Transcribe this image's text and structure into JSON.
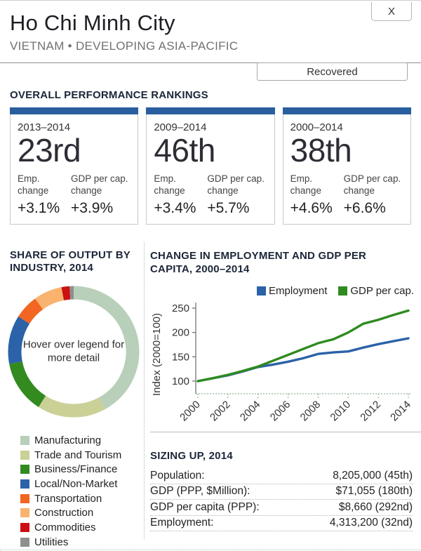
{
  "header": {
    "title": "Ho Chi Minh City",
    "subtitle": "VIETNAM • DEVELOPING ASIA-PACIFIC",
    "close_label": "X",
    "status_button_label": "Recovered"
  },
  "rankings": {
    "heading": "OVERALL PERFORMANCE RANKINGS",
    "accent_color": "#2a5f9f",
    "cards": [
      {
        "period": "2013–2014",
        "rank": "23rd",
        "emp_label": "Emp. change",
        "gdp_label": "GDP per cap. change",
        "emp_change": "+3.1%",
        "gdp_change": "+3.9%"
      },
      {
        "period": "2009–2014",
        "rank": "46th",
        "emp_label": "Emp. change",
        "gdp_label": "GDP per cap. change",
        "emp_change": "+3.4%",
        "gdp_change": "+5.7%"
      },
      {
        "period": "2000–2014",
        "rank": "38th",
        "emp_label": "Emp. change",
        "gdp_label": "GDP per cap. change",
        "emp_change": "+4.6%",
        "gdp_change": "+6.6%"
      }
    ]
  },
  "chart_data": [
    {
      "type": "pie",
      "style": "donut",
      "title": "SHARE OF OUTPUT BY INDUSTRY, 2014",
      "center_note": "Hover over legend for more detail",
      "units": "percent share of output",
      "legend_position": "below",
      "segments": [
        {
          "label": "Manufacturing",
          "value": 42,
          "color": "#b8cfba"
        },
        {
          "label": "Trade and Tourism",
          "value": 17,
          "color": "#cbd097"
        },
        {
          "label": "Business/Finance",
          "value": 13,
          "color": "#338a1f"
        },
        {
          "label": "Local/Non-Market",
          "value": 12,
          "color": "#2b62a8"
        },
        {
          "label": "Transportation",
          "value": 6,
          "color": "#f26522"
        },
        {
          "label": "Construction",
          "value": 7,
          "color": "#f9b36e"
        },
        {
          "label": "Commodities",
          "value": 2,
          "color": "#cc1012"
        },
        {
          "label": "Utilities",
          "value": 1,
          "color": "#8f8f8f"
        }
      ]
    },
    {
      "type": "line",
      "title": "CHANGE IN EMPLOYMENT AND GDP PER CAPITA, 2000–2014",
      "ylabel": "Index (2000=100)",
      "x": [
        2000,
        2001,
        2002,
        2003,
        2004,
        2005,
        2006,
        2007,
        2008,
        2009,
        2010,
        2011,
        2012,
        2013,
        2014
      ],
      "xticks": [
        2000,
        2002,
        2004,
        2006,
        2008,
        2010,
        2012,
        2014
      ],
      "yticks": [
        100,
        150,
        200,
        250
      ],
      "ylim": [
        85,
        258
      ],
      "legend_position": "top-right",
      "grid": false,
      "series": [
        {
          "name": "Employment",
          "color": "#2b62a8",
          "values": [
            100,
            106,
            112,
            120,
            129,
            134,
            140,
            147,
            156,
            159,
            161,
            169,
            176,
            182,
            188
          ]
        },
        {
          "name": "GDP per cap.",
          "color": "#2e8b1e",
          "values": [
            100,
            106,
            113,
            121,
            130,
            142,
            154,
            166,
            178,
            186,
            200,
            218,
            226,
            236,
            245
          ]
        }
      ]
    }
  ],
  "sizing": {
    "heading": "SIZING UP, 2014",
    "rows": [
      {
        "label": "Population:",
        "value": "8,205,000 (45th)"
      },
      {
        "label": "GDP (PPP, $Million):",
        "value": "$71,055 (180th)"
      },
      {
        "label": "GDP per capita (PPP):",
        "value": "$8,660 (292nd)"
      },
      {
        "label": "Employment:",
        "value": "4,313,200 (32nd)"
      }
    ]
  }
}
